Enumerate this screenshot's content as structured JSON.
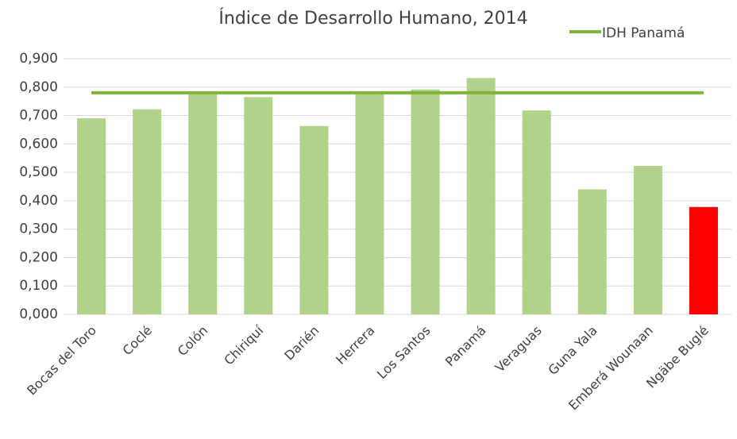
{
  "chart_data": {
    "type": "bar",
    "title": "Índice de Desarrollo Humano, 2014",
    "categories": [
      "Bocas del Toro",
      "Coclé",
      "Colón",
      "Chiriquí",
      "Darién",
      "Herrera",
      "Los Santos",
      "Panamá",
      "Veraguas",
      "Guna Yala",
      "Emberá Wounaan",
      "Ngäbe Buglé"
    ],
    "series": [
      {
        "type": "bar",
        "values": [
          0.69,
          0.722,
          0.78,
          0.765,
          0.663,
          0.78,
          0.792,
          0.832,
          0.718,
          0.44,
          0.523,
          0.378
        ],
        "colors": [
          "#b1d28a",
          "#b1d28a",
          "#b1d28a",
          "#b1d28a",
          "#b1d28a",
          "#b1d28a",
          "#b1d28a",
          "#b1d28a",
          "#b1d28a",
          "#b1d28a",
          "#b1d28a",
          "#ff0000"
        ]
      },
      {
        "type": "line",
        "name": "IDH Panamá",
        "color": "#7fb539",
        "values": [
          0.78,
          0.78,
          0.78,
          0.78,
          0.78,
          0.78,
          0.78,
          0.78,
          0.78,
          0.78,
          0.78,
          0.78
        ]
      }
    ],
    "ylim": [
      0,
      0.9
    ],
    "yticks": [
      {
        "value": 0,
        "label": "0,000"
      },
      {
        "value": 0.1,
        "label": "0,100"
      },
      {
        "value": 0.2,
        "label": "0,200"
      },
      {
        "value": 0.3,
        "label": "0,300"
      },
      {
        "value": 0.4,
        "label": "0,400"
      },
      {
        "value": 0.5,
        "label": "0,500"
      },
      {
        "value": 0.6,
        "label": "0,600"
      },
      {
        "value": 0.7,
        "label": "0,700"
      },
      {
        "value": 0.8,
        "label": "0,800"
      },
      {
        "value": 0.9,
        "label": "0,900"
      }
    ],
    "grid": true,
    "legend": "top-right"
  }
}
